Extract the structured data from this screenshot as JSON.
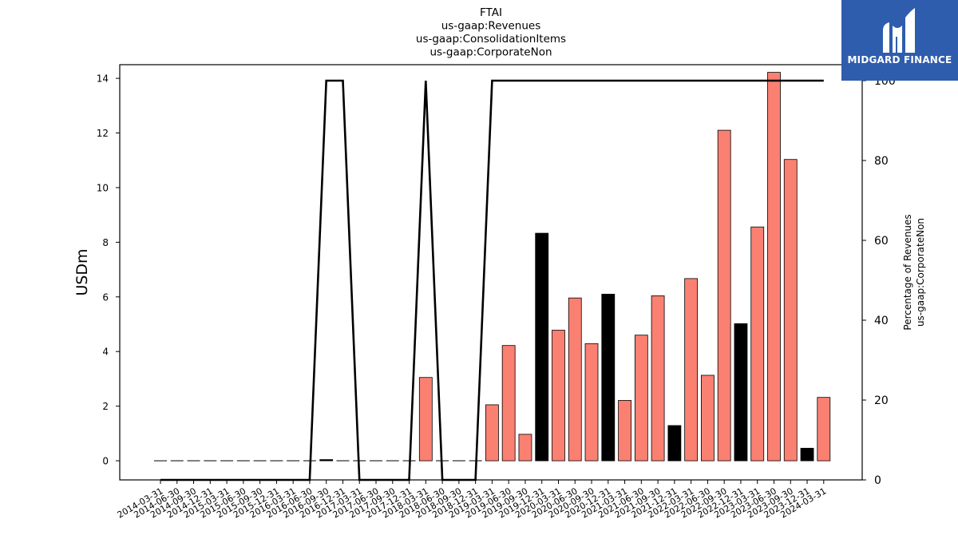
{
  "chart_data": {
    "type": "bar",
    "title_lines": [
      "FTAI",
      "us-gaap:Revenues",
      "us-gaap:ConsolidationItems",
      "us-gaap:CorporateNon"
    ],
    "ylabel": "USDm",
    "ylabel_right": [
      "Percentage of Revenues",
      "us-gaap:CorporateNon"
    ],
    "ylim": [
      -0.7,
      14.5
    ],
    "ylim_right": [
      0,
      104
    ],
    "yticks": [
      0,
      2,
      4,
      6,
      8,
      10,
      12,
      14
    ],
    "yticks_right": [
      0,
      20,
      40,
      60,
      80,
      100
    ],
    "categories": [
      "2014-03-31",
      "2014-06-30",
      "2014-09-30",
      "2014-12-31",
      "2015-03-31",
      "2015-06-30",
      "2015-09-30",
      "2015-12-31",
      "2016-03-31",
      "2016-06-30",
      "2016-09-30",
      "2016-12-31",
      "2017-03-31",
      "2017-06-30",
      "2017-09-30",
      "2017-12-31",
      "2018-03-31",
      "2018-06-30",
      "2018-09-30",
      "2018-12-31",
      "2019-03-31",
      "2019-06-30",
      "2019-09-30",
      "2019-12-31",
      "2020-03-31",
      "2020-06-30",
      "2020-09-30",
      "2020-12-31",
      "2021-03-31",
      "2021-06-30",
      "2021-09-30",
      "2021-12-31",
      "2022-03-31",
      "2022-06-30",
      "2022-09-30",
      "2022-12-31",
      "2023-03-31",
      "2023-06-30",
      "2023-09-30",
      "2023-12-31",
      "2024-03-31"
    ],
    "values": [
      0,
      0,
      0,
      0,
      0,
      0,
      0,
      0,
      0,
      0,
      0.03,
      0,
      0,
      0,
      0,
      0,
      3.05,
      0,
      0,
      0,
      2.05,
      4.22,
      0.97,
      8.33,
      4.78,
      5.96,
      4.29,
      6.1,
      2.21,
      4.6,
      6.04,
      1.29,
      6.67,
      3.13,
      12.1,
      5.02,
      8.56,
      14.22,
      11.03,
      0.46,
      2.32
    ],
    "sign": [
      "p",
      "p",
      "p",
      "p",
      "p",
      "p",
      "p",
      "p",
      "p",
      "p",
      "n",
      "p",
      "p",
      "p",
      "p",
      "p",
      "p",
      "p",
      "p",
      "p",
      "p",
      "p",
      "p",
      "n",
      "p",
      "p",
      "p",
      "n",
      "p",
      "p",
      "p",
      "n",
      "p",
      "p",
      "p",
      "n",
      "p",
      "p",
      "p",
      "n",
      "p"
    ],
    "percentage_line": [
      0,
      0,
      0,
      0,
      0,
      0,
      0,
      0,
      0,
      0,
      100,
      100,
      0,
      0,
      0,
      0,
      100,
      0,
      0,
      0,
      100,
      100,
      100,
      100,
      100,
      100,
      100,
      100,
      100,
      100,
      100,
      100,
      100,
      100,
      100,
      100,
      100,
      100,
      100,
      100,
      100
    ],
    "colors": {
      "positive": "#fa8072",
      "negative": "#000000",
      "line": "#000000"
    }
  },
  "logo": {
    "text": "MIDGARD FINANCE"
  }
}
